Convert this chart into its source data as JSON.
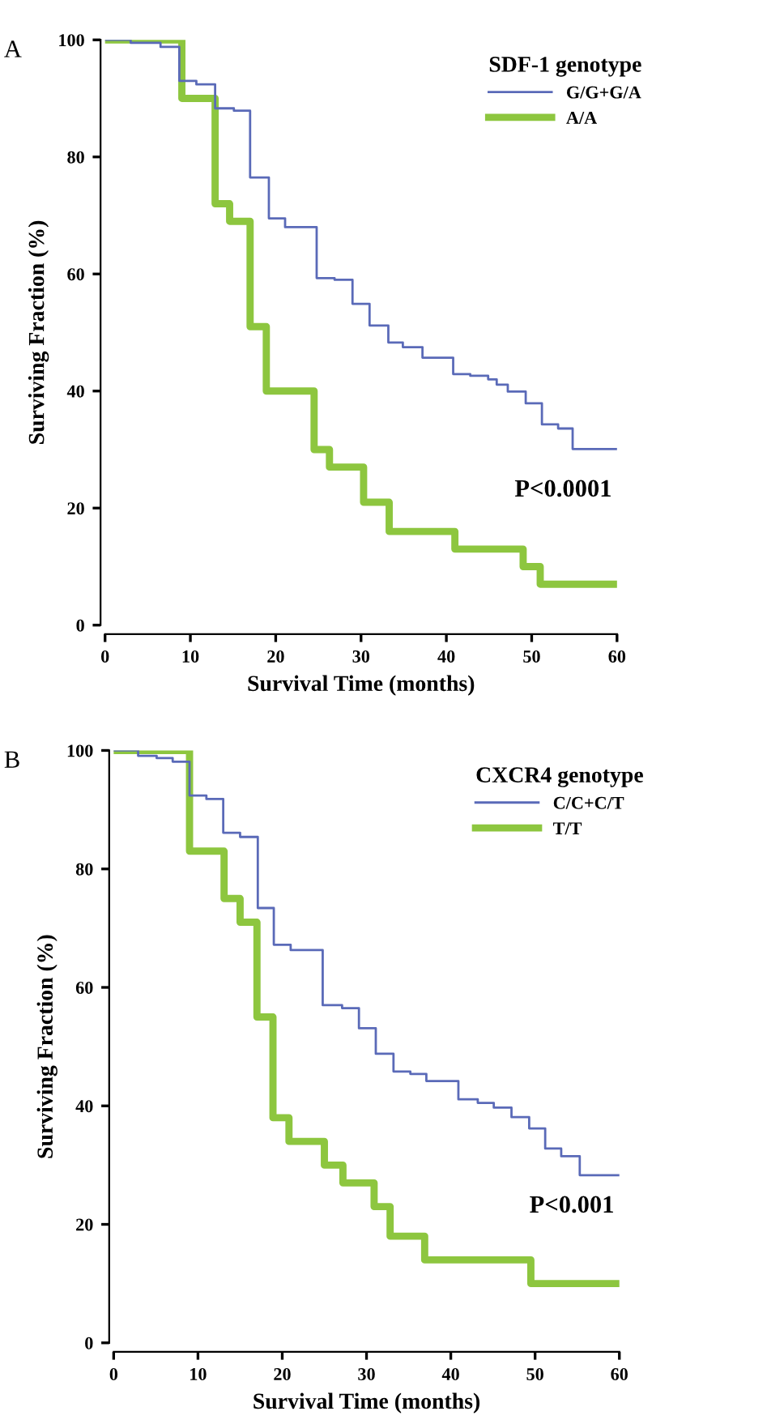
{
  "chart_data": [
    {
      "type": "step",
      "legend_title": "SDF-1 genotype",
      "xlabel": "Survival Time (months)",
      "ylabel": "Surviving Fraction (%)",
      "annotations": [
        "A",
        "P<0.0001"
      ],
      "xlim": [
        0,
        60
      ],
      "ylim": [
        0,
        100
      ],
      "xticks": [
        0,
        10,
        20,
        30,
        40,
        50,
        60
      ],
      "yticks": [
        0,
        20,
        40,
        60,
        80,
        100
      ],
      "grid": false,
      "legend": "top right",
      "series": [
        {
          "name": "G/G+G/A",
          "color": "#5a6ab8",
          "x": [
            0,
            3.0,
            6.5,
            8.7,
            10.7,
            12.9,
            15.1,
            17.0,
            19.2,
            21.1,
            24.8,
            26.9,
            29.0,
            31.0,
            33.2,
            34.9,
            37.2,
            40.8,
            42.8,
            44.9,
            45.9,
            47.2,
            49.3,
            51.2,
            53.1,
            54.8,
            60
          ],
          "values": [
            100,
            99.5,
            98.8,
            93,
            92.4,
            88.3,
            87.9,
            76.5,
            69.5,
            68,
            59.3,
            59,
            54.9,
            51.2,
            48.3,
            47.5,
            45.7,
            42.9,
            42.6,
            42,
            41.1,
            39.9,
            37.9,
            34.3,
            33.6,
            30.1,
            30.1
          ]
        },
        {
          "name": "A/A",
          "color": "#8dc63f",
          "x": [
            0,
            9.0,
            12.9,
            14.6,
            17.0,
            18.9,
            24.5,
            26.3,
            30.3,
            33.3,
            41.0,
            49.0,
            51.0,
            60
          ],
          "values": [
            100,
            90,
            72,
            69,
            51,
            40,
            30,
            27,
            21,
            16,
            13,
            10,
            7,
            7
          ]
        }
      ]
    },
    {
      "type": "step",
      "legend_title": "CXCR4 genotype",
      "xlabel": "Survival Time (months)",
      "ylabel": "Surviving Fraction (%)",
      "annotations": [
        "B",
        "P<0.001"
      ],
      "xlim": [
        0,
        60
      ],
      "ylim": [
        0,
        100
      ],
      "xticks": [
        0,
        10,
        20,
        30,
        40,
        50,
        60
      ],
      "yticks": [
        0,
        20,
        40,
        60,
        80,
        100
      ],
      "grid": false,
      "legend": "top right",
      "series": [
        {
          "name": "C/C+C/T",
          "color": "#5a6ab8",
          "x": [
            0,
            2.9,
            5.1,
            7.0,
            9.0,
            11.0,
            13.0,
            15.0,
            17.1,
            19.0,
            21.0,
            24.8,
            27.1,
            29.1,
            31.1,
            33.2,
            35.2,
            37.1,
            40.9,
            43.2,
            45.1,
            47.2,
            49.3,
            51.2,
            53.1,
            55.3,
            60
          ],
          "values": [
            100,
            99.1,
            98.7,
            98.1,
            92.4,
            91.8,
            86.1,
            85.4,
            73.4,
            67.2,
            66.3,
            57,
            56.5,
            53.1,
            48.8,
            45.8,
            45.4,
            44.2,
            41.1,
            40.5,
            39.7,
            38.1,
            36.2,
            32.8,
            31.5,
            28.3,
            28.3
          ]
        },
        {
          "name": "T/T",
          "color": "#8dc63f",
          "x": [
            0,
            9,
            13.1,
            15.0,
            17.0,
            18.9,
            20.8,
            25.0,
            27.2,
            30.9,
            32.8,
            36.9,
            49.5,
            60
          ],
          "values": [
            100,
            83,
            75,
            71,
            55,
            38,
            34,
            30,
            27,
            23,
            18,
            14,
            10,
            10
          ]
        }
      ]
    }
  ]
}
